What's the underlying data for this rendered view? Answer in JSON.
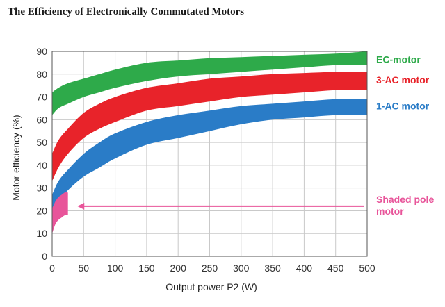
{
  "chart_data": {
    "type": "area",
    "title": "The Efficiency of Electronically Commutated Motors",
    "xlabel": "Output power P2 (W)",
    "ylabel": "Motor efficiency (%)",
    "xlim": [
      0,
      500
    ],
    "ylim": [
      0,
      90
    ],
    "x_ticks": [
      0,
      50,
      100,
      150,
      200,
      250,
      300,
      350,
      400,
      450,
      500
    ],
    "y_ticks": [
      0,
      10,
      20,
      30,
      40,
      50,
      60,
      70,
      80,
      90
    ],
    "grid": true,
    "series": [
      {
        "name": "EC-motor",
        "color": "#2eaa4a",
        "x": [
          0,
          10,
          25,
          50,
          75,
          100,
          150,
          200,
          250,
          300,
          350,
          400,
          450,
          500
        ],
        "upper": [
          72,
          74,
          76,
          78,
          80,
          82,
          85,
          86,
          87,
          87.5,
          88,
          88.5,
          89,
          90
        ],
        "lower": [
          62,
          65,
          67,
          70,
          72,
          74,
          77,
          79,
          80,
          81,
          82,
          83,
          84,
          84
        ]
      },
      {
        "name": "3-AC motor",
        "color": "#e8232a",
        "x": [
          0,
          10,
          25,
          50,
          75,
          100,
          150,
          200,
          250,
          300,
          350,
          400,
          450,
          500
        ],
        "upper": [
          45,
          51,
          56,
          63,
          67,
          70,
          74,
          76,
          78,
          79,
          80,
          80.5,
          81,
          81
        ],
        "lower": [
          33,
          39,
          45,
          52,
          56,
          59,
          64,
          66,
          68,
          70,
          71,
          72,
          73,
          73
        ]
      },
      {
        "name": "1-AC motor",
        "color": "#2a7cc7",
        "x": [
          0,
          10,
          25,
          50,
          75,
          100,
          150,
          200,
          250,
          300,
          350,
          400,
          450,
          500
        ],
        "upper": [
          27,
          33,
          38,
          45,
          50,
          54,
          59,
          62,
          64,
          66,
          67,
          68,
          69,
          69
        ],
        "lower": [
          19,
          24,
          29,
          35,
          39,
          43,
          49,
          52,
          55,
          58,
          60,
          61,
          62,
          62
        ]
      },
      {
        "name": "Shaded pole motor",
        "color": "#e8559a",
        "x": [
          0,
          5,
          10,
          15,
          20,
          25
        ],
        "upper": [
          21,
          24,
          26,
          27,
          28,
          28
        ],
        "lower": [
          10,
          14,
          16,
          17,
          18,
          18
        ]
      }
    ],
    "labels": [
      {
        "text": "EC-motor",
        "color": "#2eaa4a"
      },
      {
        "text": "3-AC motor",
        "color": "#e8232a"
      },
      {
        "text": "1-AC motor",
        "color": "#2a7cc7"
      },
      {
        "text": "Shaded pole",
        "text2": "motor",
        "color": "#e8559a"
      }
    ],
    "annotation": {
      "type": "arrow",
      "from_x": 500,
      "to_x": 40,
      "y": 22,
      "color": "#e8559a"
    }
  }
}
